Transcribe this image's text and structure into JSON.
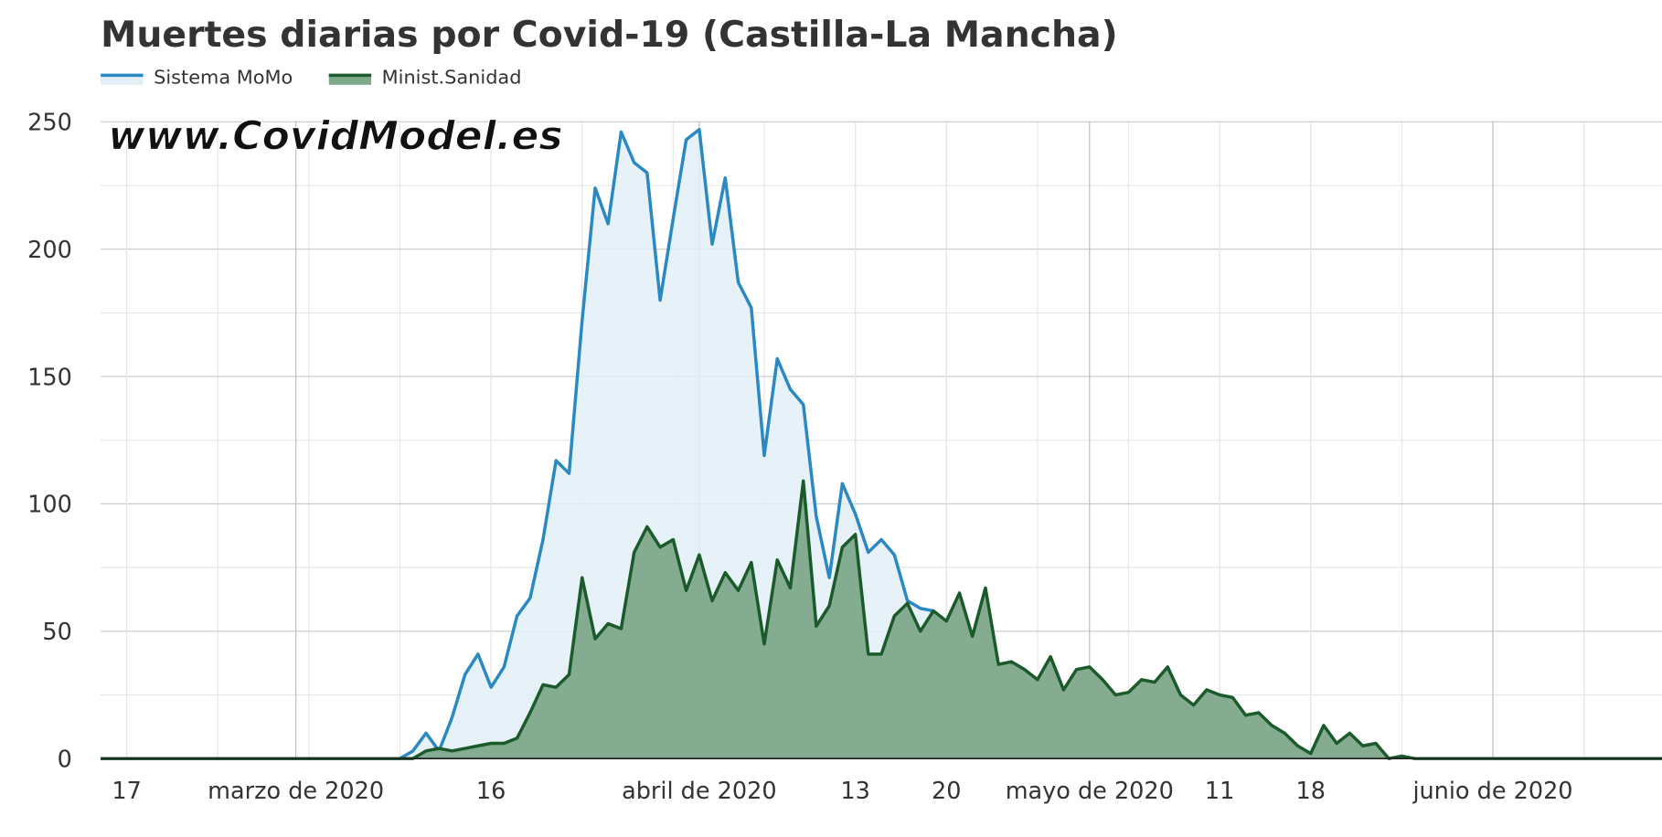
{
  "chart_data": {
    "type": "area",
    "title": "Muertes diarias por Covid-19 (Castilla-La Mancha)",
    "annotation": "www.CovidModel.es",
    "x": [
      "2020-02-15",
      "2020-02-16",
      "2020-02-17",
      "2020-02-18",
      "2020-02-19",
      "2020-02-20",
      "2020-02-21",
      "2020-02-22",
      "2020-02-23",
      "2020-02-24",
      "2020-02-25",
      "2020-02-26",
      "2020-02-27",
      "2020-02-28",
      "2020-02-29",
      "2020-03-01",
      "2020-03-02",
      "2020-03-03",
      "2020-03-04",
      "2020-03-05",
      "2020-03-06",
      "2020-03-07",
      "2020-03-08",
      "2020-03-09",
      "2020-03-10",
      "2020-03-11",
      "2020-03-12",
      "2020-03-13",
      "2020-03-14",
      "2020-03-15",
      "2020-03-16",
      "2020-03-17",
      "2020-03-18",
      "2020-03-19",
      "2020-03-20",
      "2020-03-21",
      "2020-03-22",
      "2020-03-23",
      "2020-03-24",
      "2020-03-25",
      "2020-03-26",
      "2020-03-27",
      "2020-03-28",
      "2020-03-29",
      "2020-03-30",
      "2020-03-31",
      "2020-04-01",
      "2020-04-02",
      "2020-04-03",
      "2020-04-04",
      "2020-04-05",
      "2020-04-06",
      "2020-04-07",
      "2020-04-08",
      "2020-04-09",
      "2020-04-10",
      "2020-04-11",
      "2020-04-12",
      "2020-04-13",
      "2020-04-14",
      "2020-04-15",
      "2020-04-16",
      "2020-04-17",
      "2020-04-18",
      "2020-04-19",
      "2020-04-20",
      "2020-04-21",
      "2020-04-22",
      "2020-04-23",
      "2020-04-24",
      "2020-04-25",
      "2020-04-26",
      "2020-04-27",
      "2020-04-28",
      "2020-04-29",
      "2020-04-30",
      "2020-05-01",
      "2020-05-02",
      "2020-05-03",
      "2020-05-04",
      "2020-05-05",
      "2020-05-06",
      "2020-05-07",
      "2020-05-08",
      "2020-05-09",
      "2020-05-10",
      "2020-05-11",
      "2020-05-12",
      "2020-05-13",
      "2020-05-14",
      "2020-05-15",
      "2020-05-16",
      "2020-05-17",
      "2020-05-18",
      "2020-05-19",
      "2020-05-20",
      "2020-05-21",
      "2020-05-22",
      "2020-05-23",
      "2020-05-24",
      "2020-05-25",
      "2020-05-26",
      "2020-05-27",
      "2020-05-28",
      "2020-05-29",
      "2020-05-30",
      "2020-05-31",
      "2020-06-01",
      "2020-06-02",
      "2020-06-03",
      "2020-06-04",
      "2020-06-05",
      "2020-06-06",
      "2020-06-07",
      "2020-06-08",
      "2020-06-09",
      "2020-06-10",
      "2020-06-11",
      "2020-06-12",
      "2020-06-13",
      "2020-06-14"
    ],
    "series": [
      {
        "name": "Sistema MoMo",
        "color": "#2a88c2",
        "fill": "#e3eff7",
        "values": [
          0,
          0,
          0,
          0,
          0,
          0,
          0,
          0,
          0,
          0,
          0,
          0,
          0,
          0,
          0,
          0,
          0,
          0,
          0,
          0,
          0,
          0,
          0,
          0,
          3,
          10,
          3,
          16,
          33,
          41,
          28,
          36,
          56,
          63,
          86,
          117,
          112,
          172,
          224,
          210,
          246,
          234,
          230,
          180,
          212,
          243,
          247,
          202,
          228,
          187,
          177,
          119,
          157,
          145,
          139,
          95,
          71,
          108,
          96,
          81,
          86,
          80,
          62,
          59,
          58,
          null,
          null,
          null,
          null,
          null,
          null,
          null,
          null,
          null,
          null,
          null,
          null,
          null,
          null,
          null,
          null,
          null,
          null,
          null,
          null,
          null,
          null,
          null,
          null,
          null,
          null,
          null,
          null,
          null,
          null,
          null,
          null,
          null,
          null,
          null,
          null,
          null,
          null,
          null,
          null,
          null,
          null,
          null,
          null,
          null,
          null,
          null,
          null,
          null,
          null,
          null,
          null,
          null,
          null,
          null,
          null
        ]
      },
      {
        "name": "Minist.Sanidad",
        "color": "#1b5a2b",
        "fill": "#7ea88a",
        "values": [
          0,
          0,
          0,
          0,
          0,
          0,
          0,
          0,
          0,
          0,
          0,
          0,
          0,
          0,
          0,
          0,
          0,
          0,
          0,
          0,
          0,
          0,
          0,
          0,
          0,
          3,
          4,
          3,
          4,
          5,
          6,
          6,
          8,
          18,
          29,
          28,
          33,
          71,
          47,
          53,
          51,
          81,
          91,
          83,
          86,
          66,
          80,
          62,
          73,
          66,
          77,
          45,
          78,
          67,
          109,
          52,
          60,
          83,
          88,
          41,
          41,
          56,
          61,
          50,
          58,
          54,
          65,
          48,
          67,
          37,
          38,
          35,
          31,
          40,
          27,
          35,
          36,
          31,
          25,
          26,
          31,
          30,
          36,
          25,
          21,
          27,
          25,
          24,
          17,
          18,
          13,
          10,
          5,
          2,
          13,
          6,
          10,
          5,
          6,
          0,
          1,
          0,
          0,
          0,
          0,
          0,
          0,
          0,
          0,
          0,
          0,
          0,
          0,
          0,
          0,
          0,
          0,
          0,
          0,
          0,
          0
        ]
      }
    ],
    "xlim": [
      "2020-02-15",
      "2020-06-14"
    ],
    "xticks": [
      {
        "value": "2020-02-17",
        "label": "17"
      },
      {
        "value": "2020-03-01",
        "label": "marzo de 2020"
      },
      {
        "value": "2020-03-16",
        "label": "16"
      },
      {
        "value": "2020-04-01",
        "label": "abril de 2020"
      },
      {
        "value": "2020-04-13",
        "label": "13"
      },
      {
        "value": "2020-04-20",
        "label": "20"
      },
      {
        "value": "2020-05-01",
        "label": "mayo de 2020"
      },
      {
        "value": "2020-05-11",
        "label": "11"
      },
      {
        "value": "2020-05-18",
        "label": "18"
      },
      {
        "value": "2020-06-01",
        "label": "junio de 2020"
      }
    ],
    "ylim": [
      0,
      250
    ],
    "yticks": [
      0,
      50,
      100,
      150,
      200,
      250
    ],
    "grid": true,
    "legend": "top-left"
  }
}
